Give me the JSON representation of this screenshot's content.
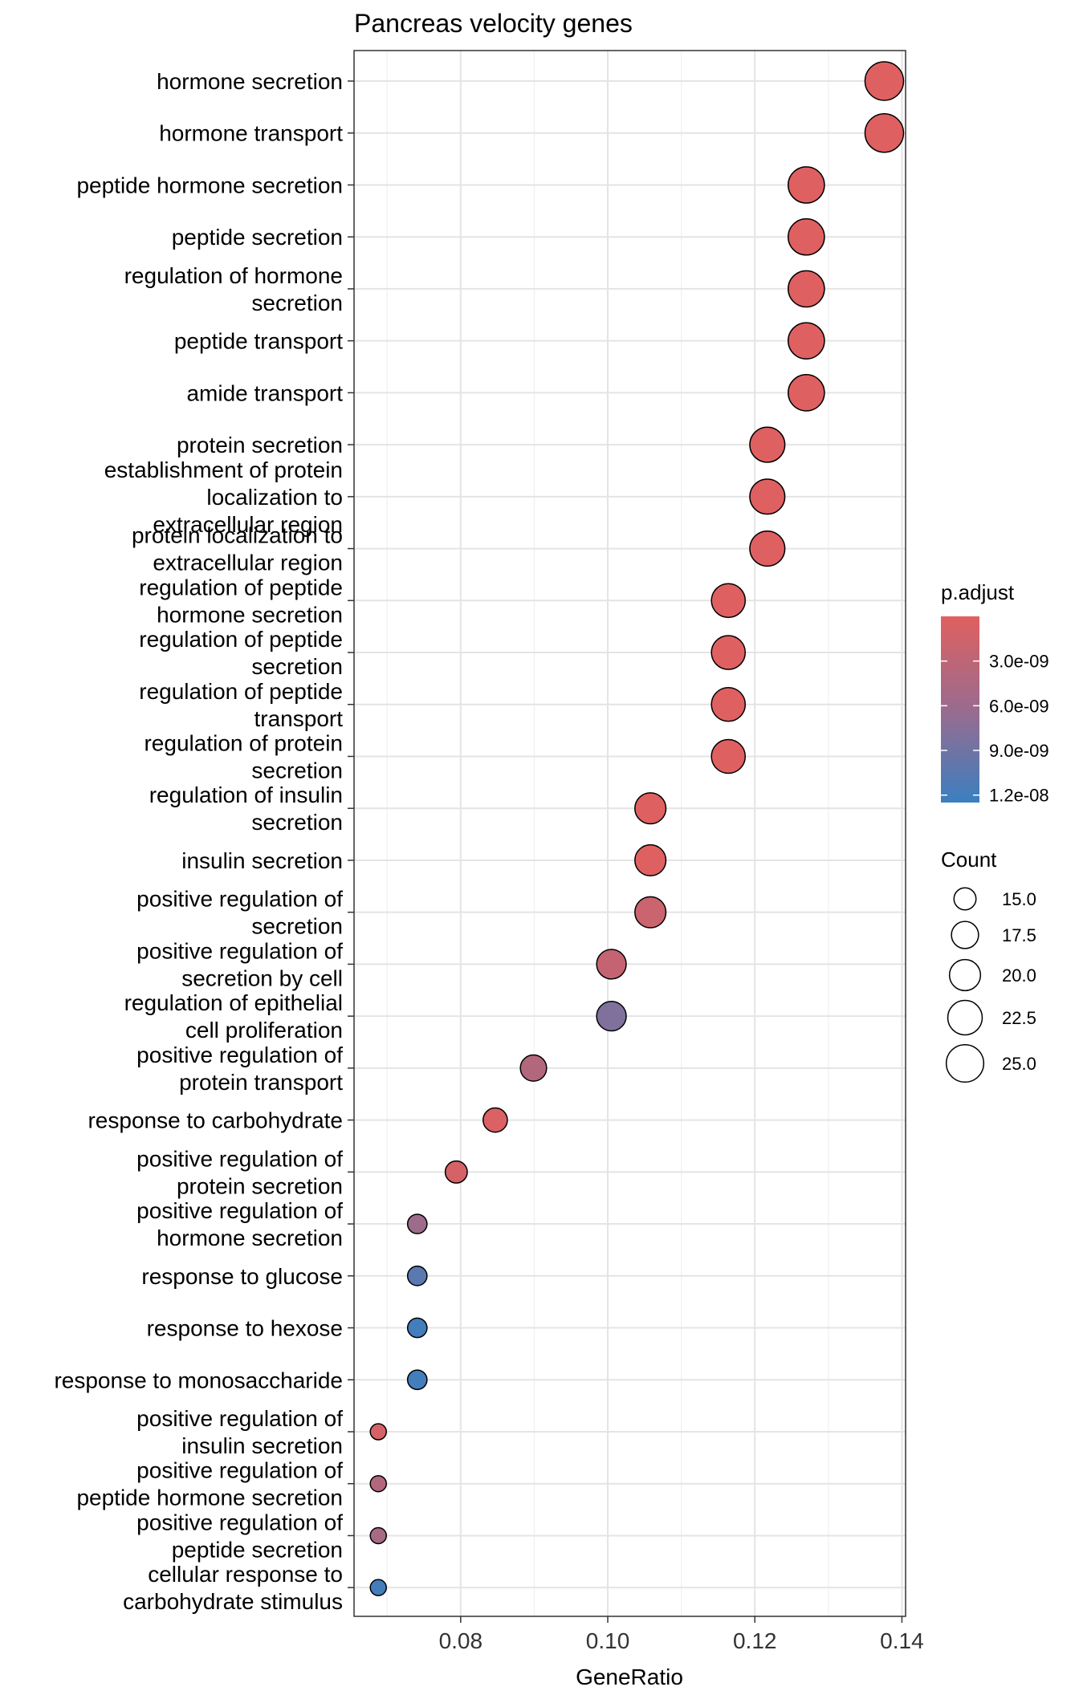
{
  "chart_data": {
    "type": "scatter",
    "title": "Pancreas velocity genes",
    "xlabel": "GeneRatio",
    "ylabel": "",
    "xlim": [
      0.0655,
      0.1405
    ],
    "x_ticks": [
      0.08,
      0.1,
      0.12,
      0.14
    ],
    "x_tick_labels": [
      "0.08",
      "0.10",
      "0.12",
      "0.14"
    ],
    "grid": true,
    "points": [
      {
        "term": "hormone secretion",
        "x": 0.1376,
        "count": 26,
        "p_adjust": 1e-10
      },
      {
        "term": "hormone transport",
        "x": 0.1376,
        "count": 26,
        "p_adjust": 1e-10
      },
      {
        "term": "peptide hormone secretion",
        "x": 0.127,
        "count": 24,
        "p_adjust": 1e-10
      },
      {
        "term": "peptide secretion",
        "x": 0.127,
        "count": 24,
        "p_adjust": 1e-10
      },
      {
        "term": "regulation of hormone secretion",
        "x": 0.127,
        "count": 24,
        "p_adjust": 1e-10
      },
      {
        "term": "peptide transport",
        "x": 0.127,
        "count": 24,
        "p_adjust": 1e-10
      },
      {
        "term": "amide transport",
        "x": 0.127,
        "count": 24,
        "p_adjust": 1e-10
      },
      {
        "term": "protein secretion",
        "x": 0.1217,
        "count": 23,
        "p_adjust": 1e-10
      },
      {
        "term": "establishment of protein localization to extracellular region",
        "x": 0.1217,
        "count": 23,
        "p_adjust": 1e-10
      },
      {
        "term": "protein localization to extracellular region",
        "x": 0.1217,
        "count": 23,
        "p_adjust": 1e-10
      },
      {
        "term": "regulation of peptide hormone secretion",
        "x": 0.1164,
        "count": 22,
        "p_adjust": 1e-10
      },
      {
        "term": "regulation of peptide secretion",
        "x": 0.1164,
        "count": 22,
        "p_adjust": 1e-10
      },
      {
        "term": "regulation of peptide transport",
        "x": 0.1164,
        "count": 22,
        "p_adjust": 1e-10
      },
      {
        "term": "regulation of protein secretion",
        "x": 0.1164,
        "count": 22,
        "p_adjust": 1e-10
      },
      {
        "term": "regulation of insulin secretion",
        "x": 0.1058,
        "count": 20,
        "p_adjust": 1e-10
      },
      {
        "term": "insulin secretion",
        "x": 0.1058,
        "count": 20,
        "p_adjust": 1e-10
      },
      {
        "term": "positive regulation of secretion",
        "x": 0.1058,
        "count": 20,
        "p_adjust": 2e-09
      },
      {
        "term": "positive regulation of secretion by cell",
        "x": 0.1005,
        "count": 19,
        "p_adjust": 2.5e-09
      },
      {
        "term": "regulation of epithelial cell proliferation",
        "x": 0.1005,
        "count": 19,
        "p_adjust": 8e-09
      },
      {
        "term": "positive regulation of protein transport",
        "x": 0.0899,
        "count": 17,
        "p_adjust": 4e-09
      },
      {
        "term": "response to carbohydrate",
        "x": 0.0847,
        "count": 16,
        "p_adjust": 5e-10
      },
      {
        "term": "positive regulation of protein secretion",
        "x": 0.0794,
        "count": 15,
        "p_adjust": 1e-09
      },
      {
        "term": "positive regulation of hormone secretion",
        "x": 0.0741,
        "count": 14,
        "p_adjust": 6e-09
      },
      {
        "term": "response to glucose",
        "x": 0.0741,
        "count": 14,
        "p_adjust": 1.05e-08
      },
      {
        "term": "response to hexose",
        "x": 0.0741,
        "count": 14,
        "p_adjust": 1.2e-08
      },
      {
        "term": "response to monosaccharide",
        "x": 0.0741,
        "count": 14,
        "p_adjust": 1.2e-08
      },
      {
        "term": "positive regulation of insulin secretion",
        "x": 0.0688,
        "count": 13,
        "p_adjust": 1e-09
      },
      {
        "term": "positive regulation of peptide hormone secretion",
        "x": 0.0688,
        "count": 13,
        "p_adjust": 4e-09
      },
      {
        "term": "positive regulation of peptide secretion",
        "x": 0.0688,
        "count": 13,
        "p_adjust": 5e-09
      },
      {
        "term": "cellular response to carbohydrate stimulus",
        "x": 0.0688,
        "count": 13,
        "p_adjust": 1.2e-08
      }
    ],
    "y_labels": [
      [
        "hormone secretion"
      ],
      [
        "hormone transport"
      ],
      [
        "peptide hormone secretion"
      ],
      [
        "peptide secretion"
      ],
      [
        "regulation of hormone",
        "secretion"
      ],
      [
        "peptide transport"
      ],
      [
        "amide transport"
      ],
      [
        "protein secretion"
      ],
      [
        "establishment of protein",
        "localization to",
        "extracellular region"
      ],
      [
        "protein localization to",
        "extracellular region"
      ],
      [
        "regulation of peptide",
        "hormone secretion"
      ],
      [
        "regulation of peptide",
        "secretion"
      ],
      [
        "regulation of peptide",
        "transport"
      ],
      [
        "regulation of protein",
        "secretion"
      ],
      [
        "regulation of insulin",
        "secretion"
      ],
      [
        "insulin secretion"
      ],
      [
        "positive regulation of",
        "secretion"
      ],
      [
        "positive regulation of",
        "secretion by cell"
      ],
      [
        "regulation of epithelial",
        "cell proliferation"
      ],
      [
        "positive regulation of",
        "protein transport"
      ],
      [
        "response to carbohydrate"
      ],
      [
        "positive regulation of",
        "protein secretion"
      ],
      [
        "positive regulation of",
        "hormone secretion"
      ],
      [
        "response to glucose"
      ],
      [
        "response to hexose"
      ],
      [
        "response to monosaccharide"
      ],
      [
        "positive regulation of",
        "insulin secretion"
      ],
      [
        "positive regulation of",
        "peptide hormone secretion"
      ],
      [
        "positive regulation of",
        "peptide secretion"
      ],
      [
        "cellular response to",
        "carbohydrate stimulus"
      ]
    ],
    "color_legend": {
      "title": "p.adjust",
      "low_color": "#E06060",
      "high_color": "#3B7FC0",
      "range": [
        0,
        1.25e-08
      ],
      "breaks": [
        3e-09,
        6e-09,
        9e-09,
        1.2e-08
      ],
      "labels": [
        "3.0e-09",
        "6.0e-09",
        "9.0e-09",
        "1.2e-08"
      ]
    },
    "size_legend": {
      "title": "Count",
      "breaks": [
        15.0,
        17.5,
        20.0,
        22.5,
        25.0
      ],
      "labels": [
        "15.0",
        "17.5",
        "20.0",
        "22.5",
        "25.0"
      ],
      "count_range": [
        13,
        26
      ]
    },
    "legend_position": "right"
  }
}
